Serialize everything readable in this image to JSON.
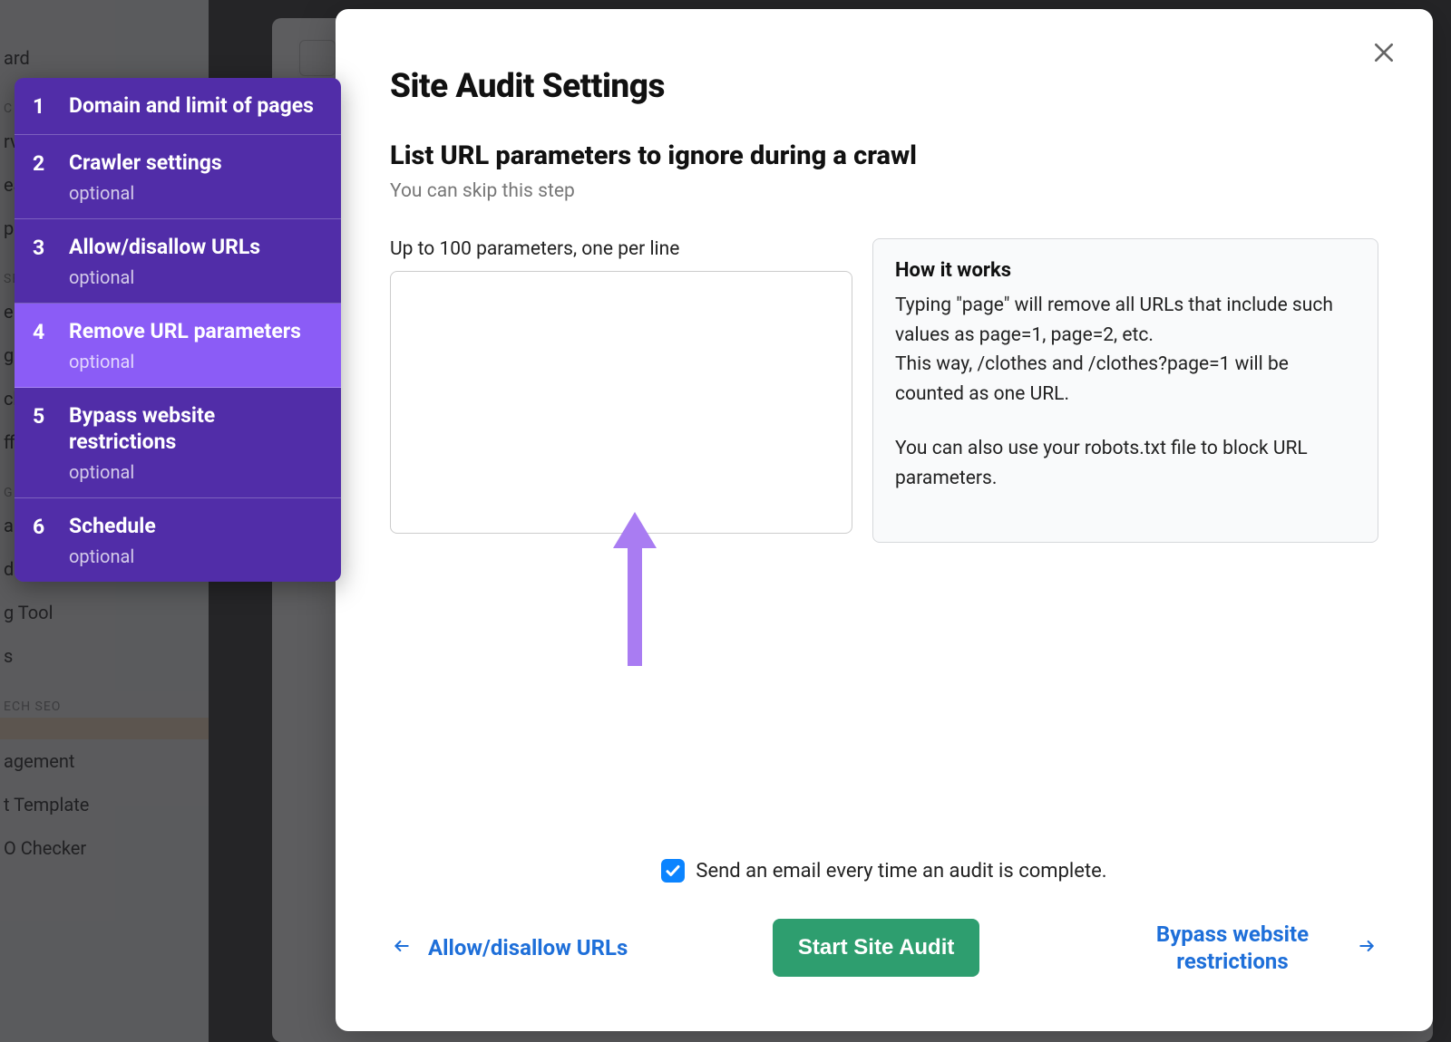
{
  "colors": {
    "wizard_bg": "#512da8",
    "wizard_active_bg": "#8b5cf6",
    "link": "#1e6fd9",
    "cta_bg": "#2e9e6f",
    "checkbox_bg": "#0b84ff",
    "arrow": "#a97cf2"
  },
  "background_nav": {
    "items_top": [
      "ard"
    ],
    "section1": "C R",
    "items1": [
      "rv",
      "ea",
      "p"
    ],
    "section2": "SE",
    "items2": [
      "er",
      "g",
      "ck",
      "ffi"
    ],
    "section3": "G",
    "items3": [
      "alytics",
      "dit",
      "g Tool",
      "s"
    ],
    "section4": "ECH SEO",
    "items4_hl": "",
    "items4": [
      "agement",
      "t Template",
      "O Checker"
    ]
  },
  "wizard": {
    "steps": [
      {
        "n": "1",
        "label": "Domain and limit of pages",
        "optional": ""
      },
      {
        "n": "2",
        "label": "Crawler settings",
        "optional": "optional"
      },
      {
        "n": "3",
        "label": "Allow/disallow URLs",
        "optional": "optional"
      },
      {
        "n": "4",
        "label": "Remove URL parameters",
        "optional": "optional",
        "active": true
      },
      {
        "n": "5",
        "label": "Bypass website restrictions",
        "optional": "optional"
      },
      {
        "n": "6",
        "label": "Schedule",
        "optional": "optional"
      }
    ]
  },
  "modal": {
    "title": "Site Audit Settings",
    "subtitle": "List URL parameters to ignore during a crawl",
    "hint": "You can skip this step",
    "input_label": "Up to 100 parameters, one per line",
    "textarea_value": "",
    "info_title": "How it works",
    "info_p1": "Typing \"page\" will remove all URLs that include such values as page=1, page=2, etc.\nThis way, /clothes and /clothes?page=1 will be counted as one URL.",
    "info_p2": "You can also use your robots.txt file to block URL parameters.",
    "email_checked": true,
    "email_label": "Send an email every time an audit is complete.",
    "prev_label": "Allow/disallow URLs",
    "next_label": "Bypass website restrictions",
    "cta_label": "Start Site Audit"
  }
}
